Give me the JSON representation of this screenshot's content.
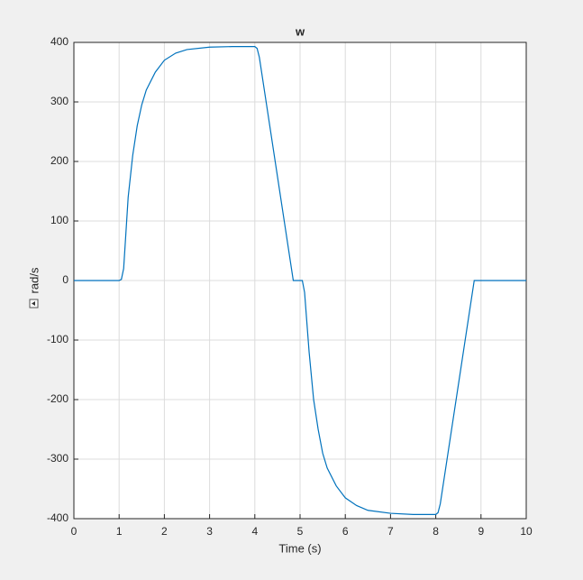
{
  "chart_data": {
    "type": "line",
    "title": "w",
    "x_label": "Time (s)",
    "y_label": "rad/s",
    "x": [
      0,
      1,
      1.05,
      1.1,
      1.15,
      1.2,
      1.3,
      1.4,
      1.5,
      1.6,
      1.8,
      2,
      2.25,
      2.5,
      3,
      3.5,
      4,
      4.05,
      4.1,
      4.85,
      5.05,
      5.1,
      5.2,
      5.3,
      5.4,
      5.5,
      5.6,
      5.8,
      6,
      6.25,
      6.5,
      7,
      7.5,
      8,
      8.05,
      8.1,
      8.85,
      10
    ],
    "series": [
      {
        "name": "w",
        "color": "#0072bd",
        "values": [
          0,
          0,
          2,
          20,
          80,
          140,
          210,
          260,
          295,
          320,
          350,
          370,
          382,
          388,
          392,
          393,
          393,
          390,
          375,
          0,
          0,
          -20,
          -120,
          -200,
          -250,
          -290,
          -315,
          -345,
          -365,
          -378,
          -386,
          -391,
          -393,
          -393,
          -390,
          -375,
          0,
          0
        ]
      }
    ],
    "xlim": [
      0,
      10
    ],
    "xticks": [
      0,
      1,
      2,
      3,
      4,
      5,
      6,
      7,
      8,
      9,
      10
    ],
    "ylim": [
      -400,
      400
    ],
    "yticks": [
      -400,
      -300,
      -200,
      -100,
      0,
      100,
      200,
      300,
      400
    ],
    "grid": true
  }
}
